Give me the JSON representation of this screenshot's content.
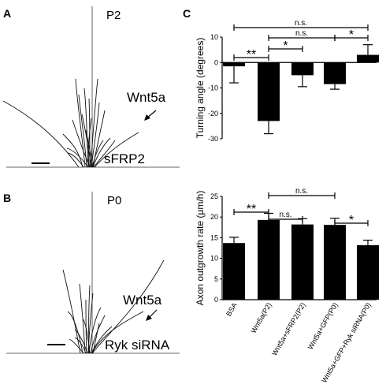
{
  "panels": {
    "a": {
      "letter": "A",
      "condition": "P2",
      "ligand": "Wnt5a",
      "treatment": "sFRP2"
    },
    "b": {
      "letter": "B",
      "condition": "P0",
      "ligand": "Wnt5a",
      "treatment": "Ryk siRNA"
    },
    "c": {
      "letter": "C"
    }
  },
  "chart_data": [
    {
      "type": "bar",
      "title": "",
      "xlabel": "",
      "ylabel": "Turning angle (degrees)",
      "ylim": [
        -30,
        10
      ],
      "yticks": [
        10,
        0,
        -10,
        -20,
        -30
      ],
      "categories": [
        "BSA",
        "Wnt5a(P2)",
        "Wnt5a+sFRP2(P2)",
        "Wnt5a+GFP(P0)",
        "Wnt5a+GFP+Ryk siRNA(P0)"
      ],
      "values": [
        -1.5,
        -23,
        -5,
        -8.5,
        3
      ],
      "errors": [
        6.5,
        5,
        4.5,
        2,
        4
      ],
      "significance": [
        {
          "from": 0,
          "to": 4,
          "label": "n.s."
        },
        {
          "from": 1,
          "to": 3,
          "label": "n.s."
        },
        {
          "from": 3,
          "to": 4,
          "label": "*"
        },
        {
          "from": 0,
          "to": 1,
          "label": "**"
        },
        {
          "from": 1,
          "to": 2,
          "label": "*"
        }
      ]
    },
    {
      "type": "bar",
      "title": "",
      "xlabel": "",
      "ylabel": "Axon outgrowth rate (μm/h)",
      "ylim": [
        0,
        25
      ],
      "yticks": [
        0,
        5,
        10,
        15,
        20,
        25
      ],
      "categories": [
        "BSA",
        "Wnt5a(P2)",
        "Wnt5a+sFRP2(P2)",
        "Wnt5a+GFP(P0)",
        "Wnt5a+GFP+Ryk siRNA(P0)"
      ],
      "values": [
        13.7,
        19.3,
        18.2,
        18.1,
        13.2
      ],
      "errors": [
        1.4,
        1.6,
        1.4,
        1.6,
        1.2
      ],
      "significance": [
        {
          "from": 1,
          "to": 3,
          "label": "n.s."
        },
        {
          "from": 0,
          "to": 1,
          "label": "**"
        },
        {
          "from": 1,
          "to": 2,
          "label": "n.s."
        },
        {
          "from": 3,
          "to": 4,
          "label": "*"
        }
      ]
    }
  ]
}
